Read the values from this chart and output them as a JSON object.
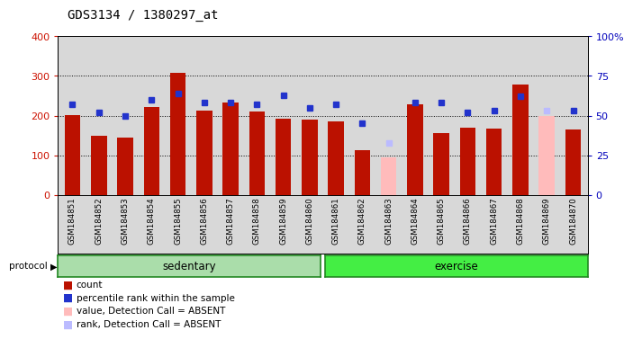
{
  "title": "GDS3134 / 1380297_at",
  "samples": [
    "GSM184851",
    "GSM184852",
    "GSM184853",
    "GSM184854",
    "GSM184855",
    "GSM184856",
    "GSM184857",
    "GSM184858",
    "GSM184859",
    "GSM184860",
    "GSM184861",
    "GSM184862",
    "GSM184863",
    "GSM184864",
    "GSM184865",
    "GSM184866",
    "GSM184867",
    "GSM184868",
    "GSM184869",
    "GSM184870"
  ],
  "counts": [
    202,
    150,
    145,
    222,
    307,
    213,
    233,
    210,
    193,
    190,
    185,
    112,
    null,
    228,
    157,
    170,
    168,
    278,
    null,
    165
  ],
  "absent_counts": [
    null,
    null,
    null,
    null,
    null,
    null,
    null,
    null,
    null,
    null,
    null,
    null,
    95,
    null,
    null,
    null,
    null,
    null,
    200,
    null
  ],
  "percentile_ranks": [
    57,
    52,
    50,
    60,
    64,
    58,
    58,
    57,
    63,
    55,
    57,
    45,
    null,
    58,
    58,
    52,
    53,
    62,
    null,
    53
  ],
  "absent_rank_vals": [
    null,
    null,
    null,
    null,
    null,
    null,
    null,
    null,
    null,
    null,
    null,
    null,
    33,
    null,
    null,
    null,
    null,
    null,
    53,
    null
  ],
  "ylim_left": [
    0,
    400
  ],
  "ylim_right": [
    0,
    100
  ],
  "yticks_left": [
    0,
    100,
    200,
    300,
    400
  ],
  "yticks_right": [
    0,
    25,
    50,
    75,
    100
  ],
  "right_tick_labels": [
    "0",
    "25",
    "50",
    "75",
    "100%"
  ],
  "bar_color": "#bb1100",
  "blue_color": "#2233cc",
  "absent_bar_color": "#ffbbbb",
  "absent_rank_color": "#bbbbff",
  "bg_color": "#d8d8d8",
  "group_bg_color_sed": "#aaddaa",
  "group_bg_color_ex": "#44dd44",
  "group_border_color": "#228822",
  "axis_color_left": "#cc1100",
  "axis_color_right": "#0000bb",
  "legend_items": [
    {
      "label": "count",
      "color": "#bb1100"
    },
    {
      "label": "percentile rank within the sample",
      "color": "#2233cc"
    },
    {
      "label": "value, Detection Call = ABSENT",
      "color": "#ffbbbb"
    },
    {
      "label": "rank, Detection Call = ABSENT",
      "color": "#bbbbff"
    }
  ]
}
